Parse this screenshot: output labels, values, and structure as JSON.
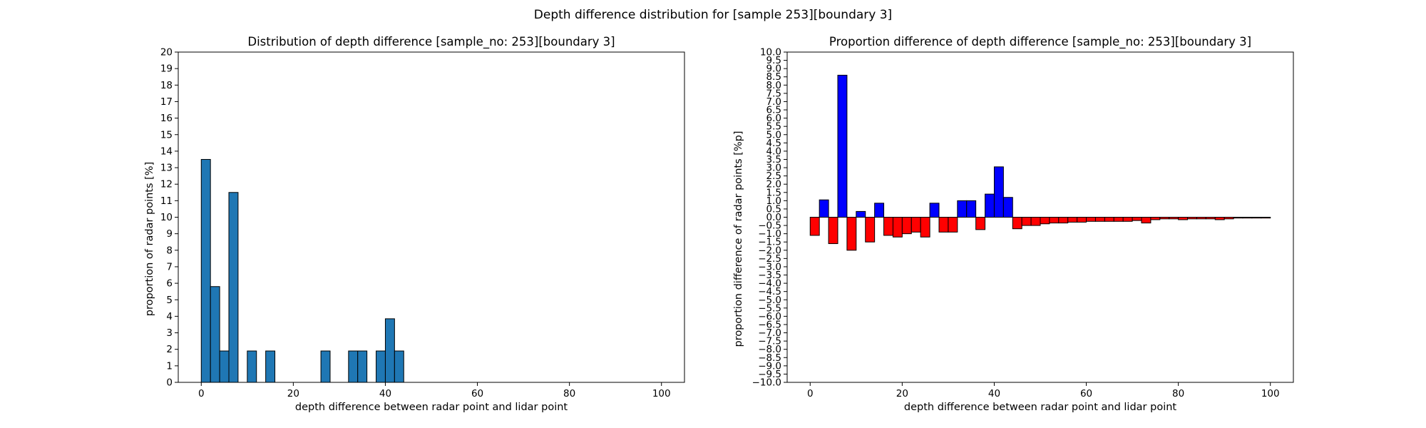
{
  "figure": {
    "suptitle": "Depth difference distribution for [sample 253][boundary 3]"
  },
  "chart_data": [
    {
      "type": "bar",
      "title": "Distribution of depth difference [sample_no: 253][boundary 3]",
      "xlabel": "depth difference between radar point and lidar point",
      "ylabel": "proportion of radar points [%]",
      "xlim": [
        -5,
        105
      ],
      "ylim": [
        0,
        20
      ],
      "xticks": [
        0,
        20,
        40,
        60,
        80,
        100
      ],
      "yticks": [
        0,
        1,
        2,
        3,
        4,
        5,
        6,
        7,
        8,
        9,
        10,
        11,
        12,
        13,
        14,
        15,
        16,
        17,
        18,
        19,
        20
      ],
      "bin_width": 2,
      "bar_color": "#1f77b4",
      "edge_color": "#000000",
      "x": [
        0,
        2,
        4,
        6,
        10,
        14,
        26,
        32,
        34,
        38,
        40,
        42
      ],
      "values": [
        13.5,
        5.8,
        1.9,
        11.5,
        1.9,
        1.9,
        1.9,
        1.9,
        1.9,
        1.9,
        3.85,
        1.9
      ]
    },
    {
      "type": "bar",
      "title": "Proportion difference of depth difference [sample_no: 253][boundary 3]",
      "xlabel": "depth difference between radar point and lidar point",
      "ylabel": "proportion difference of radar points [%p]",
      "xlim": [
        -5,
        105
      ],
      "ylim": [
        -10,
        10
      ],
      "xticks": [
        0,
        20,
        40,
        60,
        80,
        100
      ],
      "ytick_step": 0.5,
      "bin_width": 2,
      "positive_color": "#0000ff",
      "negative_color": "#ff0000",
      "edge_color": "#000000",
      "x": [
        0,
        2,
        4,
        6,
        8,
        10,
        12,
        14,
        16,
        18,
        20,
        22,
        24,
        26,
        28,
        30,
        32,
        34,
        36,
        38,
        40,
        42,
        44,
        46,
        48,
        50,
        52,
        54,
        56,
        58,
        60,
        62,
        64,
        66,
        68,
        70,
        72,
        74,
        76,
        78,
        80,
        82,
        84,
        86,
        88,
        90,
        92,
        94,
        96,
        98
      ],
      "values": [
        -1.1,
        1.05,
        -1.6,
        8.6,
        -2.0,
        0.35,
        -1.5,
        0.85,
        -1.1,
        -1.2,
        -1.0,
        -0.9,
        -1.2,
        0.85,
        -0.9,
        -0.9,
        1.0,
        1.0,
        -0.75,
        1.4,
        3.05,
        1.2,
        -0.7,
        -0.5,
        -0.5,
        -0.4,
        -0.35,
        -0.35,
        -0.3,
        -0.3,
        -0.25,
        -0.25,
        -0.25,
        -0.25,
        -0.25,
        -0.2,
        -0.35,
        -0.15,
        -0.1,
        -0.1,
        -0.15,
        -0.1,
        -0.1,
        -0.1,
        -0.15,
        -0.1,
        -0.05,
        -0.05,
        -0.05,
        -0.05
      ]
    }
  ]
}
